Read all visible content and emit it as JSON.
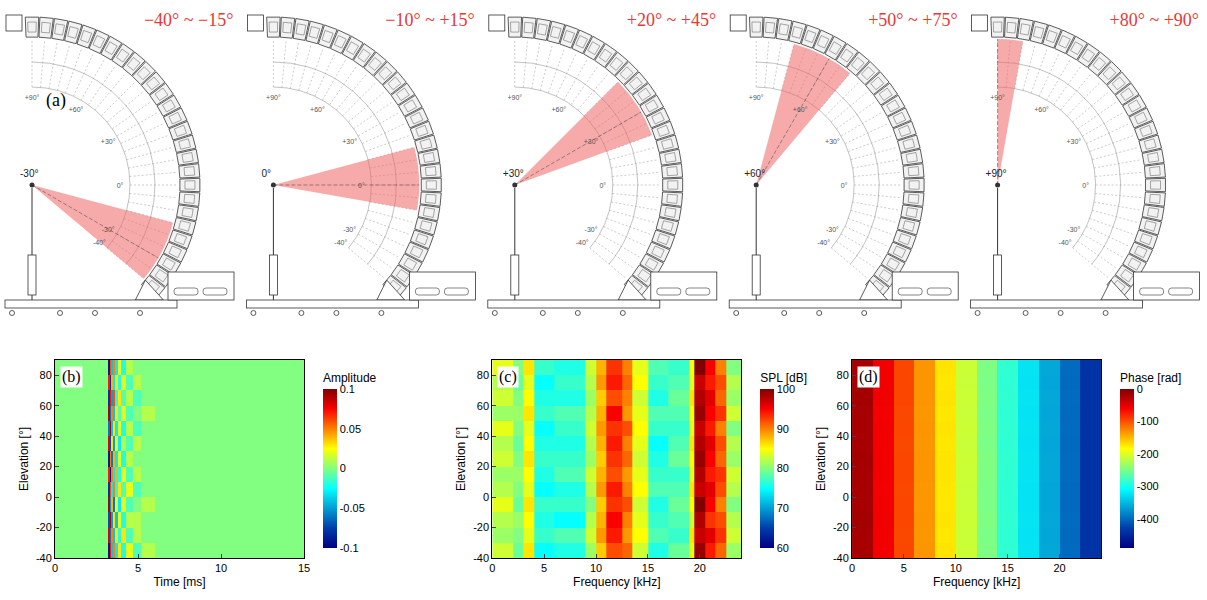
{
  "panel_a": {
    "panel_label": "(a)",
    "arc_ticks": [
      {
        "value": 90,
        "label": "+90°"
      },
      {
        "value": 60,
        "label": "+60°"
      },
      {
        "value": 30,
        "label": "+30°"
      },
      {
        "value": 0,
        "label": "0°"
      },
      {
        "value": -30,
        "label": "-30°"
      },
      {
        "value": -40,
        "label": "-40°"
      }
    ],
    "panels": [
      {
        "title": "−40° ~ −15°",
        "range": [
          -40,
          -15
        ],
        "mic": {
          "value": -30,
          "label": "-30°"
        }
      },
      {
        "title": "−10° ~ +15°",
        "range": [
          -10,
          15
        ],
        "mic": {
          "value": 0,
          "label": "0°"
        }
      },
      {
        "title": "+20° ~ +45°",
        "range": [
          20,
          45
        ],
        "mic": {
          "value": 30,
          "label": "+30°"
        }
      },
      {
        "title": "+50° ~ +75°",
        "range": [
          50,
          75
        ],
        "mic": {
          "value": 60,
          "label": "+60°"
        }
      },
      {
        "title": "+80° ~ +90°",
        "range": [
          80,
          90
        ],
        "mic": {
          "value": 90,
          "label": "+90°"
        }
      }
    ]
  },
  "chart_data": [
    {
      "type": "heatmap",
      "panel_label": "(b)",
      "x_label": "Time [ms]",
      "y_label": "Elevation [°]",
      "color": "Jet",
      "xlim": [
        0,
        15
      ],
      "xticks": [
        0,
        5,
        10,
        15
      ],
      "ylim": [
        -40,
        90
      ],
      "yticks": [
        -40,
        -20,
        0,
        20,
        40,
        60,
        80
      ],
      "x_edges": [
        0,
        3.2,
        3.3,
        3.4,
        3.5,
        3.6,
        3.8,
        4.0,
        4.3,
        4.7,
        5.2,
        6,
        15
      ],
      "y_edges": [
        -40,
        -30,
        -20,
        -10,
        0,
        10,
        20,
        30,
        40,
        50,
        60,
        70,
        80,
        90
      ],
      "z": [
        [
          0,
          -0.09,
          0.07,
          -0.04,
          0.05,
          -0.03,
          0.03,
          -0.02,
          0.02,
          -0.01,
          0.01,
          0
        ],
        [
          0,
          0.08,
          -0.06,
          0.05,
          -0.04,
          0.03,
          -0.02,
          0.03,
          -0.01,
          0.01,
          0,
          0
        ],
        [
          0,
          -0.07,
          0.09,
          -0.05,
          0.03,
          -0.04,
          0.02,
          -0.02,
          0.01,
          0.01,
          0,
          0
        ],
        [
          0,
          0.09,
          -0.05,
          0.04,
          -0.06,
          0.02,
          -0.03,
          0.02,
          -0.01,
          0,
          0.01,
          0
        ],
        [
          0,
          -0.08,
          0.06,
          -0.03,
          0.05,
          -0.02,
          0.03,
          -0.01,
          0.02,
          -0.01,
          0,
          0
        ],
        [
          0,
          0.07,
          -0.09,
          0.05,
          -0.03,
          0.04,
          -0.02,
          0.02,
          -0.01,
          0.01,
          0,
          0
        ],
        [
          0,
          -0.09,
          0.05,
          -0.06,
          0.04,
          -0.03,
          0.02,
          -0.02,
          0.01,
          0,
          0,
          0
        ],
        [
          0,
          0.08,
          -0.07,
          0.03,
          -0.05,
          0.02,
          -0.03,
          0.01,
          -0.01,
          0.01,
          0,
          0
        ],
        [
          0,
          -0.06,
          0.09,
          -0.04,
          0.03,
          -0.03,
          0.02,
          -0.02,
          0.01,
          -0.01,
          0,
          0
        ],
        [
          0,
          0.09,
          -0.06,
          0.05,
          -0.04,
          0.03,
          -0.01,
          0.02,
          -0.01,
          0,
          0.01,
          0
        ],
        [
          0,
          -0.08,
          0.07,
          -0.05,
          0.06,
          -0.02,
          0.03,
          -0.01,
          0.01,
          -0.01,
          0,
          0
        ],
        [
          0,
          0.07,
          -0.08,
          0.04,
          -0.03,
          0.03,
          -0.02,
          0.02,
          -0.01,
          0.01,
          0,
          0
        ],
        [
          0,
          -0.09,
          0.06,
          -0.04,
          0.05,
          -0.03,
          0.02,
          -0.02,
          0.01,
          0,
          0,
          0
        ]
      ],
      "colorbar": {
        "title": "Amplitude",
        "range": [
          -0.1,
          0.1
        ],
        "ticks": [
          -0.1,
          -0.05,
          0,
          0.05,
          0.1
        ]
      }
    },
    {
      "type": "heatmap",
      "panel_label": "(c)",
      "x_label": "Frequency [kHz]",
      "y_label": "Elevation [°]",
      "color": "Jet",
      "xlim": [
        0,
        24
      ],
      "xticks": [
        0,
        5,
        10,
        15,
        20
      ],
      "ylim": [
        -40,
        90
      ],
      "yticks": [
        -40,
        -20,
        0,
        20,
        40,
        60,
        80
      ],
      "x_edges": [
        0,
        2,
        3,
        4,
        6,
        9,
        10,
        11,
        12.5,
        13.5,
        15,
        17,
        19,
        19.5,
        20.5,
        21.5,
        22.5,
        24
      ],
      "y_edges": [
        -40,
        -30,
        -20,
        -10,
        0,
        10,
        20,
        30,
        40,
        50,
        60,
        70,
        80,
        90
      ],
      "z": [
        [
          83,
          79,
          86,
          75,
          76,
          81,
          87,
          92,
          91,
          83,
          76,
          79,
          84,
          99,
          94,
          91,
          81
        ],
        [
          81,
          80,
          84,
          77,
          78,
          83,
          89,
          94,
          89,
          85,
          78,
          77,
          86,
          97,
          96,
          93,
          83
        ],
        [
          82,
          81,
          85,
          76,
          75,
          82,
          88,
          95,
          90,
          84,
          77,
          78,
          83,
          98,
          93,
          92,
          82
        ],
        [
          84,
          79,
          86,
          77,
          77,
          80,
          87,
          93,
          92,
          83,
          76,
          79,
          85,
          100,
          95,
          90,
          80
        ],
        [
          82,
          80,
          84,
          75,
          76,
          82,
          89,
          94,
          90,
          85,
          78,
          78,
          86,
          97,
          96,
          92,
          82
        ],
        [
          81,
          81,
          85,
          76,
          78,
          83,
          88,
          92,
          89,
          84,
          77,
          77,
          84,
          98,
          94,
          93,
          83
        ],
        [
          83,
          80,
          86,
          77,
          77,
          81,
          87,
          93,
          91,
          83,
          76,
          79,
          85,
          99,
          95,
          91,
          81
        ],
        [
          82,
          79,
          85,
          76,
          76,
          82,
          88,
          94,
          90,
          84,
          75,
          78,
          86,
          98,
          96,
          92,
          82
        ],
        [
          84,
          80,
          84,
          75,
          77,
          83,
          89,
          93,
          92,
          85,
          77,
          77,
          84,
          97,
          94,
          90,
          80
        ],
        [
          81,
          81,
          86,
          77,
          78,
          82,
          88,
          95,
          89,
          84,
          78,
          78,
          85,
          99,
          95,
          93,
          83
        ],
        [
          83,
          80,
          85,
          76,
          76,
          81,
          87,
          92,
          90,
          83,
          76,
          79,
          86,
          98,
          96,
          91,
          81
        ],
        [
          82,
          79,
          84,
          75,
          77,
          82,
          89,
          94,
          91,
          85,
          77,
          78,
          84,
          97,
          94,
          92,
          82
        ],
        [
          84,
          80,
          86,
          77,
          76,
          83,
          88,
          93,
          90,
          84,
          78,
          77,
          85,
          100,
          95,
          90,
          80
        ]
      ],
      "colorbar": {
        "title": "SPL [dB]",
        "range": [
          60,
          100
        ],
        "ticks": [
          60,
          70,
          80,
          90,
          100
        ]
      }
    },
    {
      "type": "heatmap",
      "panel_label": "(d)",
      "x_label": "Frequency [kHz]",
      "y_label": "Elevation [°]",
      "color": "Jet",
      "xlim": [
        0,
        24
      ],
      "xticks": [
        0,
        5,
        10,
        15,
        20
      ],
      "ylim": [
        -40,
        90
      ],
      "yticks": [
        -40,
        -20,
        0,
        20,
        40,
        60,
        80
      ],
      "x_edges": [
        0,
        2,
        4,
        6,
        8,
        10,
        12,
        14,
        16,
        18,
        20,
        22,
        24
      ],
      "y_edges": [
        -40,
        -30,
        -20,
        -10,
        0,
        10,
        20,
        30,
        40,
        50,
        60,
        70,
        80,
        90
      ],
      "z": [
        [
          -19,
          -57,
          -95,
          -133,
          -171,
          -209,
          -247,
          -285,
          -323,
          -361,
          -399,
          -437
        ],
        [
          -19,
          -57,
          -96,
          -134,
          -172,
          -210,
          -248,
          -286,
          -324,
          -362,
          -400,
          -438
        ],
        [
          -18,
          -56,
          -95,
          -133,
          -171,
          -209,
          -247,
          -285,
          -323,
          -361,
          -399,
          -437
        ],
        [
          -19,
          -57,
          -95,
          -134,
          -172,
          -210,
          -248,
          -286,
          -324,
          -362,
          -400,
          -438
        ],
        [
          -19,
          -58,
          -96,
          -134,
          -172,
          -210,
          -248,
          -286,
          -324,
          -362,
          -400,
          -438
        ],
        [
          -19,
          -57,
          -95,
          -133,
          -171,
          -209,
          -247,
          -285,
          -323,
          -361,
          -399,
          -437
        ],
        [
          -18,
          -57,
          -95,
          -133,
          -171,
          -209,
          -247,
          -285,
          -323,
          -361,
          -399,
          -437
        ],
        [
          -19,
          -57,
          -96,
          -134,
          -172,
          -210,
          -248,
          -286,
          -324,
          -362,
          -400,
          -438
        ],
        [
          -19,
          -57,
          -95,
          -133,
          -171,
          -209,
          -247,
          -285,
          -323,
          -361,
          -399,
          -437
        ],
        [
          -19,
          -58,
          -96,
          -134,
          -172,
          -210,
          -248,
          -286,
          -324,
          -362,
          -400,
          -438
        ],
        [
          -18,
          -56,
          -95,
          -133,
          -171,
          -209,
          -247,
          -285,
          -323,
          -361,
          -399,
          -437
        ],
        [
          -19,
          -57,
          -95,
          -133,
          -172,
          -210,
          -248,
          -286,
          -324,
          -362,
          -400,
          -438
        ],
        [
          -19,
          -57,
          -95,
          -133,
          -171,
          -209,
          -247,
          -285,
          -323,
          -361,
          -399,
          -437
        ]
      ],
      "colorbar": {
        "title": "Phase [rad]",
        "range": [
          -490,
          0
        ],
        "ticks": [
          0,
          -100,
          -200,
          -300,
          -400
        ]
      }
    }
  ]
}
